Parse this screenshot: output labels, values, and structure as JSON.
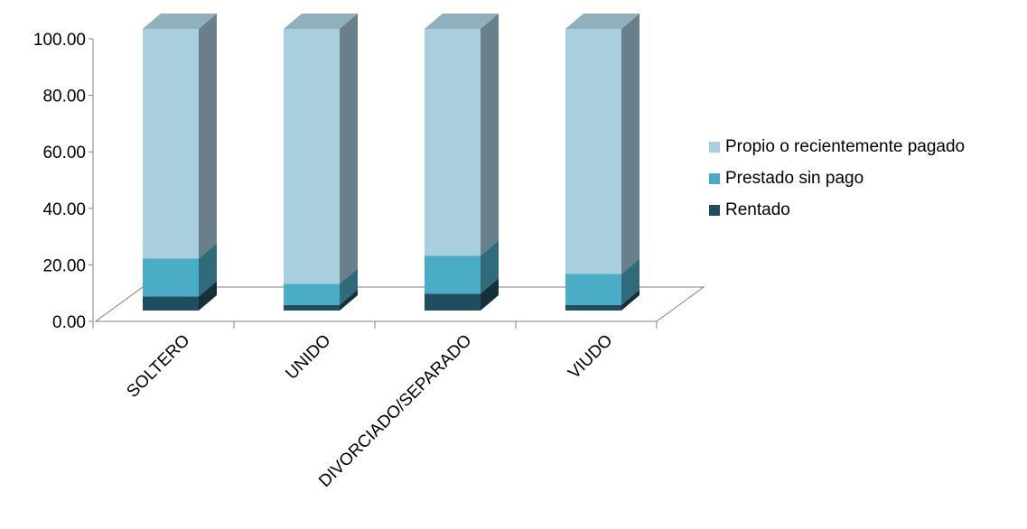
{
  "chart_data": {
    "type": "bar",
    "stacked": true,
    "three_d": true,
    "categories": [
      "SOLTERO",
      "UNIDO",
      "DIVORCIADO/SEPARADO",
      "VIUDO"
    ],
    "series": [
      {
        "name": "Rentado",
        "color": "#1f4e5f",
        "values": [
          5,
          2,
          6,
          2
        ]
      },
      {
        "name": "Prestado sin pago",
        "color": "#4bacc6",
        "values": [
          13.5,
          7.5,
          13.5,
          11
        ]
      },
      {
        "name": "Propio o recientemente pagado",
        "color": "#a9cfdf",
        "values": [
          81.5,
          90.5,
          80.5,
          87
        ]
      }
    ],
    "ylim": [
      0,
      100
    ],
    "yticks": [
      "0.00",
      "20.00",
      "40.00",
      "60.00",
      "80.00",
      "100.00"
    ],
    "grid": false,
    "legend_position": "right"
  }
}
